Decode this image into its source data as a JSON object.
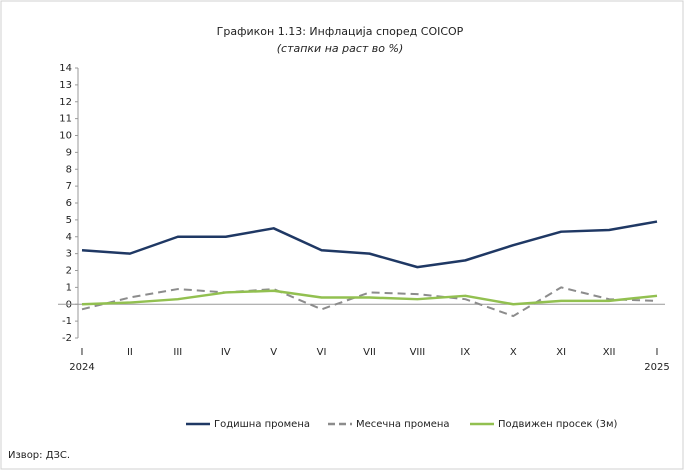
{
  "chart_data": {
    "type": "line",
    "title": "Графикон 1.13: Инфлација според COICOP",
    "subtitle": "(стапки на раст во %)",
    "categories": [
      "I",
      "II",
      "III",
      "IV",
      "V",
      "VI",
      "VII",
      "VIII",
      "IX",
      "X",
      "XI",
      "XII",
      "I"
    ],
    "category_years": [
      "2024",
      null,
      null,
      null,
      null,
      null,
      null,
      null,
      null,
      null,
      null,
      null,
      "2025"
    ],
    "series": [
      {
        "name": "Годишна промена",
        "color": "#1f3864",
        "dash": false,
        "values": [
          3.2,
          3.0,
          4.0,
          4.0,
          4.5,
          3.2,
          3.0,
          2.2,
          2.6,
          3.5,
          4.3,
          4.4,
          4.9
        ]
      },
      {
        "name": "Месечна промена",
        "color": "#8c8c8c",
        "dash": true,
        "values": [
          -0.3,
          0.4,
          0.9,
          0.7,
          0.9,
          -0.3,
          0.7,
          0.6,
          0.3,
          -0.7,
          1.0,
          0.3,
          0.2
        ]
      },
      {
        "name": "Подвижен просек (3м)",
        "color": "#92c050",
        "dash": false,
        "values": [
          0.0,
          0.1,
          0.3,
          0.7,
          0.8,
          0.4,
          0.4,
          0.3,
          0.5,
          0.0,
          0.2,
          0.2,
          0.5
        ]
      }
    ],
    "ylim": [
      -2,
      14
    ],
    "yticks": [
      -2,
      -1,
      0,
      1,
      2,
      3,
      4,
      5,
      6,
      7,
      8,
      9,
      10,
      11,
      12,
      13,
      14
    ],
    "grid": false,
    "legend": "bottom",
    "source": "Извор: ДЗС."
  }
}
